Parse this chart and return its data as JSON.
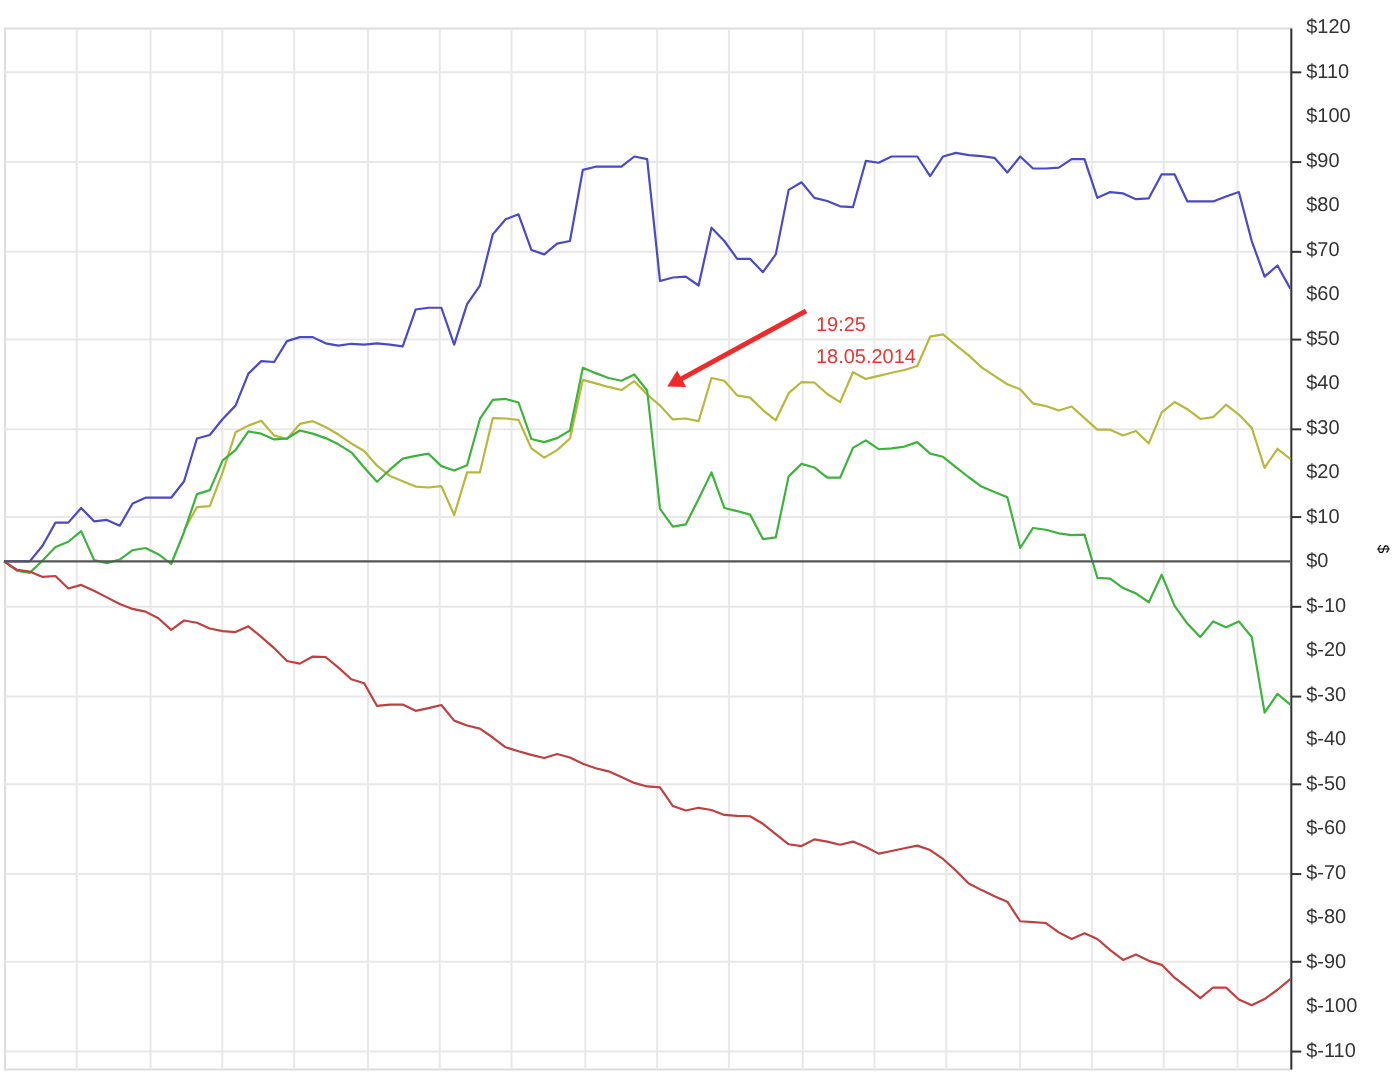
{
  "chart_data": {
    "type": "line",
    "ylabel": "$",
    "grid": true,
    "legend": false,
    "tick_labels": "y",
    "line_style": "solid",
    "marker": "none",
    "categories": [
      null,
      null,
      null,
      null,
      null,
      null,
      null,
      null,
      null,
      null,
      null,
      null,
      null,
      null,
      null,
      null,
      null,
      null,
      null,
      null,
      null,
      null,
      null,
      null,
      null,
      null,
      null,
      null,
      null,
      null,
      null,
      null,
      null,
      null,
      null,
      null,
      null,
      null,
      null,
      null,
      null,
      null,
      null,
      null,
      null,
      null,
      null,
      null,
      null,
      null,
      null,
      null,
      null,
      null,
      null,
      null,
      null,
      null,
      null,
      null,
      null,
      null,
      null,
      null,
      null,
      null,
      null,
      null,
      null,
      null,
      null,
      null,
      null,
      null,
      null,
      null,
      null,
      null,
      null,
      null,
      null,
      null,
      null,
      null,
      null,
      null,
      null,
      null,
      null,
      null,
      null,
      null,
      null,
      null,
      null,
      null,
      null,
      null,
      null,
      null,
      null
    ],
    "ylim": [
      -114,
      120
    ],
    "yticks": [
      {
        "value": 120,
        "label": "$120"
      },
      {
        "value": 110,
        "label": "$110"
      },
      {
        "value": 100,
        "label": "$100"
      },
      {
        "value": 90,
        "label": "$90"
      },
      {
        "value": 80,
        "label": "$80"
      },
      {
        "value": 70,
        "label": "$70"
      },
      {
        "value": 60,
        "label": "$60"
      },
      {
        "value": 50,
        "label": "$50"
      },
      {
        "value": 40,
        "label": "$40"
      },
      {
        "value": 30,
        "label": "$30"
      },
      {
        "value": 20,
        "label": "$20"
      },
      {
        "value": 10,
        "label": "$10"
      },
      {
        "value": 0,
        "label": "$0"
      },
      {
        "value": -10,
        "label": "$-10"
      },
      {
        "value": -20,
        "label": "$-20"
      },
      {
        "value": -30,
        "label": "$-30"
      },
      {
        "value": -40,
        "label": "$-40"
      },
      {
        "value": -50,
        "label": "$-50"
      },
      {
        "value": -60,
        "label": "$-60"
      },
      {
        "value": -70,
        "label": "$-70"
      },
      {
        "value": -80,
        "label": "$-80"
      },
      {
        "value": -90,
        "label": "$-90"
      },
      {
        "value": -100,
        "label": "$-100"
      },
      {
        "value": -110,
        "label": "$-110"
      }
    ],
    "ref_lines": [
      {
        "axis": "y",
        "value": 0,
        "color": "#555555",
        "line_style": "solid"
      }
    ],
    "annotations": [
      "19:25\n18.05.2014"
    ],
    "series": [
      {
        "color": "#4a4ac8",
        "values": [
          0,
          0,
          0,
          3.5,
          8.7,
          8.7,
          12,
          9,
          9.3,
          8,
          13,
          14.3,
          14.3,
          14.3,
          18,
          27.6,
          28.4,
          32,
          35,
          42.2,
          45,
          44.8,
          49.5,
          50.4,
          50.4,
          49,
          48.5,
          48.9,
          48.7,
          49,
          48.7,
          48.3,
          56.6,
          57,
          57,
          48.7,
          57.8,
          62,
          73.5,
          76.9,
          78,
          70,
          69,
          71.4,
          72,
          88,
          88.7,
          88.7,
          88.7,
          91,
          90.4,
          63,
          63.8,
          64,
          62,
          75,
          72,
          68,
          68,
          65,
          69,
          83.5,
          85.2,
          81.7,
          81,
          79.8,
          79.6,
          90,
          89.6,
          91,
          91,
          91,
          86.6,
          91,
          91.8,
          91.3,
          91.1,
          90.7,
          87.4,
          91,
          88.3,
          88.3,
          88.5,
          90.4,
          90.4,
          81.7,
          83,
          82.7,
          81.4,
          81.6,
          87,
          87,
          80.9,
          80.9,
          80.9,
          82,
          83,
          72,
          64,
          66.5,
          61.3
        ]
      },
      {
        "color": "#b8b83c",
        "values": [
          null,
          null,
          null,
          null,
          null,
          null,
          null,
          null,
          null,
          null,
          null,
          null,
          null,
          null,
          7,
          12.2,
          12.4,
          20,
          29,
          30.5,
          31.6,
          28.3,
          27.5,
          30.9,
          31.5,
          30.2,
          28.5,
          26.5,
          24.8,
          21.5,
          19.2,
          18,
          16.8,
          16.6,
          16.9,
          10.4,
          20,
          20,
          32.2,
          32.1,
          31.8,
          25.4,
          23.3,
          25,
          27.6,
          40.8,
          40,
          39.2,
          38.5,
          40.5,
          37.5,
          35,
          31.9,
          32.1,
          31.5,
          41.2,
          40.6,
          37.3,
          36.8,
          34,
          31.7,
          37.8,
          40.3,
          40.2,
          37.6,
          35.8,
          42.5,
          41,
          41.7,
          42.4,
          43,
          43.9,
          50.5,
          51,
          48.6,
          46.3,
          43.6,
          41.7,
          39.8,
          38.7,
          35.5,
          34.9,
          33.9,
          34.8,
          32.2,
          29.6,
          29.6,
          28.3,
          29.3,
          26.5,
          33.5,
          35.8,
          34.2,
          32,
          32.4,
          35.2,
          33,
          30,
          21,
          25.3,
          23
        ]
      },
      {
        "color": "#3cb43c",
        "values": [
          0,
          -2.1,
          -2.6,
          0.2,
          3.2,
          4.4,
          6.8,
          0.3,
          -0.4,
          0.4,
          2.5,
          3,
          1.6,
          -0.6,
          6.6,
          15.1,
          16,
          22.7,
          25,
          29.2,
          28.7,
          27.4,
          27.6,
          29.4,
          28.7,
          27.7,
          26.3,
          24.5,
          21.1,
          17.9,
          20.6,
          23.1,
          23.7,
          24.2,
          21.4,
          20.4,
          21.6,
          32,
          36.3,
          36.5,
          35.7,
          27.5,
          26.8,
          27.7,
          29.4,
          43.5,
          42.3,
          41.2,
          40.6,
          42,
          38.4,
          11.8,
          7.8,
          8.3,
          14,
          20,
          12,
          11.3,
          10.5,
          5,
          5.4,
          19.1,
          21.9,
          21.1,
          18.8,
          18.8,
          25.5,
          27.2,
          25.2,
          25.4,
          25.8,
          26.8,
          24.2,
          23.5,
          21.2,
          18.9,
          16.8,
          15.6,
          14.4,
          3,
          7.5,
          7.1,
          6.3,
          5.9,
          6,
          -3.7,
          -3.9,
          -6,
          -7.2,
          -9.2,
          -3,
          -10,
          -14,
          -17,
          -13.5,
          -14.8,
          -13.5,
          -17,
          -34,
          -29.8,
          -32.2
        ]
      },
      {
        "color": "#c04040",
        "values": [
          0,
          -1.9,
          -2.3,
          -3.5,
          -3.3,
          -6.1,
          -5.3,
          -6.6,
          -8.1,
          -9.6,
          -10.7,
          -11.3,
          -12.8,
          -15.4,
          -13.3,
          -13.8,
          -15.1,
          -15.7,
          -15.9,
          -14.6,
          -17,
          -19.5,
          -22.4,
          -23,
          -21.4,
          -21.5,
          -23.9,
          -26.5,
          -27.4,
          -32.5,
          -32.2,
          -32.2,
          -33.6,
          -33,
          -32.3,
          -35.8,
          -36.9,
          -37.6,
          -39.6,
          -41.8,
          -42.7,
          -43.5,
          -44.2,
          -43.3,
          -44.1,
          -45.5,
          -46.5,
          -47.2,
          -48.5,
          -49.8,
          -50.6,
          -50.8,
          -55,
          -56,
          -55.4,
          -55.9,
          -57,
          -57.2,
          -57.3,
          -59,
          -61.3,
          -63.6,
          -64,
          -62.5,
          -63,
          -63.7,
          -63,
          -64.2,
          -65.7,
          -65.1,
          -64.5,
          -63.9,
          -64.9,
          -66.9,
          -69.5,
          -72.4,
          -73.9,
          -75.3,
          -76.5,
          -80.9,
          -81.1,
          -81.3,
          -83.4,
          -84.9,
          -83.6,
          -84.9,
          -87.4,
          -89.6,
          -88.4,
          -89.8,
          -90.7,
          -93.6,
          -95.8,
          -98.2,
          -95.8,
          -95.8,
          -98.5,
          -99.8,
          -98.4,
          -96.3,
          -93.9
        ]
      }
    ]
  }
}
